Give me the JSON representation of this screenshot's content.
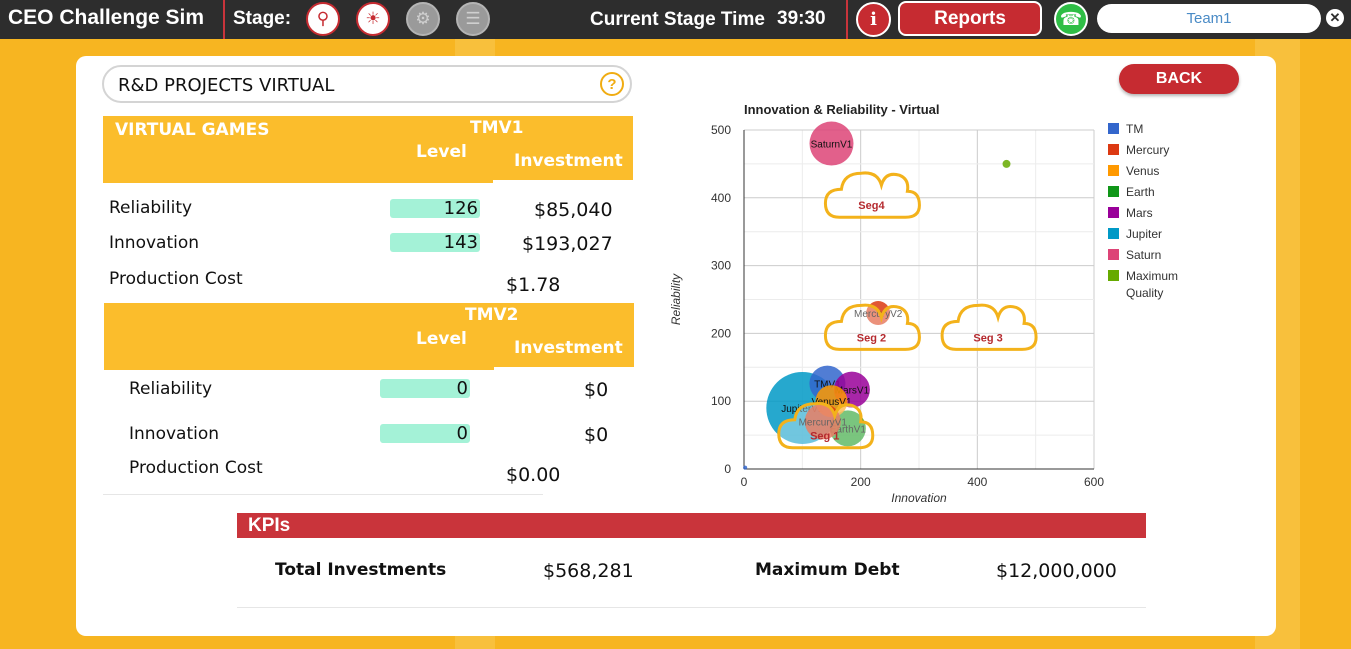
{
  "header": {
    "app_title": "CEO Challenge Sim",
    "stage_label": "Stage:",
    "stage_time_label": "Current Stage Time",
    "stage_time_value": "39:30",
    "reports_label": "Reports",
    "team_name": "Team1"
  },
  "panel": {
    "title": "R&D PROJECTS VIRTUAL",
    "back_label": "BACK"
  },
  "tmv1": {
    "section_label": "VIRTUAL GAMES",
    "product": "TMV1",
    "level_header": "Level",
    "investment_header": "Investment",
    "rows": [
      {
        "label": "Reliability",
        "level": "126",
        "investment": "$85,040"
      },
      {
        "label": "Innovation",
        "level": "143",
        "investment": "$193,027"
      }
    ],
    "production_cost_label": "Production Cost",
    "production_cost": "$1.78"
  },
  "tmv2": {
    "product": "TMV2",
    "level_header": "Level",
    "investment_header": "Investment",
    "rows": [
      {
        "label": "Reliability",
        "level": "0",
        "investment": "$0"
      },
      {
        "label": "Innovation",
        "level": "0",
        "investment": "$0"
      }
    ],
    "production_cost_label": "Production Cost",
    "production_cost": "$0.00"
  },
  "kpis": {
    "title": "KPIs",
    "total_investments_label": "Total Investments",
    "total_investments": "$568,281",
    "maximum_debt_label": "Maximum Debt",
    "maximum_debt": "$12,000,000"
  },
  "chart_data": {
    "type": "scatter",
    "title": "Innovation & Reliability - Virtual",
    "xlabel": "Innovation",
    "ylabel": "Reliability",
    "xlim": [
      0,
      600
    ],
    "ylim": [
      0,
      500
    ],
    "xticks": [
      "0",
      "200",
      "400",
      "600"
    ],
    "yticks": [
      "0",
      "100",
      "200",
      "300",
      "400",
      "500"
    ],
    "grid": true,
    "legend_position": "right",
    "legend": [
      {
        "name": "TM",
        "color": "#3366cc"
      },
      {
        "name": "Mercury",
        "color": "#dc3912"
      },
      {
        "name": "Venus",
        "color": "#ff9900"
      },
      {
        "name": "Earth",
        "color": "#109618"
      },
      {
        "name": "Mars",
        "color": "#990099"
      },
      {
        "name": "Jupiter",
        "color": "#0099c6"
      },
      {
        "name": "Saturn",
        "color": "#dd4477"
      },
      {
        "name": "Maximum Quality",
        "color": "#66aa00"
      }
    ],
    "points": [
      {
        "label": "JupiterV1",
        "x": 100,
        "y": 90,
        "r": 36,
        "color": "#0099c6"
      },
      {
        "label": "SaturnV1",
        "x": 150,
        "y": 480,
        "r": 22,
        "color": "#dd4477"
      },
      {
        "label": "MercuryV2",
        "x": 230,
        "y": 230,
        "r": 12,
        "color": "#dc3912"
      },
      {
        "label": "TMV1",
        "x": 143,
        "y": 126,
        "r": 18,
        "color": "#3366cc"
      },
      {
        "label": "MarsV1",
        "x": 185,
        "y": 117,
        "r": 18,
        "color": "#990099"
      },
      {
        "label": "EarthV1",
        "x": 178,
        "y": 60,
        "r": 18,
        "color": "#109618"
      },
      {
        "label": "VenusV1",
        "x": 150,
        "y": 100,
        "r": 16,
        "color": "#ff9900"
      },
      {
        "label": "MercuryV1",
        "x": 135,
        "y": 70,
        "r": 18,
        "color": "#dc3912"
      },
      {
        "label": "",
        "x": 450,
        "y": 450,
        "r": 4,
        "color": "#66aa00"
      },
      {
        "label": "",
        "x": 2,
        "y": 2,
        "r": 2,
        "color": "#3366cc"
      }
    ],
    "segments": [
      {
        "label": "Seg4",
        "x": 215,
        "y": 395
      },
      {
        "label": "Seg 2",
        "x": 215,
        "y": 200
      },
      {
        "label": "Seg 3",
        "x": 415,
        "y": 200
      },
      {
        "label": "Seg 1",
        "x": 135,
        "y": 55
      }
    ]
  }
}
